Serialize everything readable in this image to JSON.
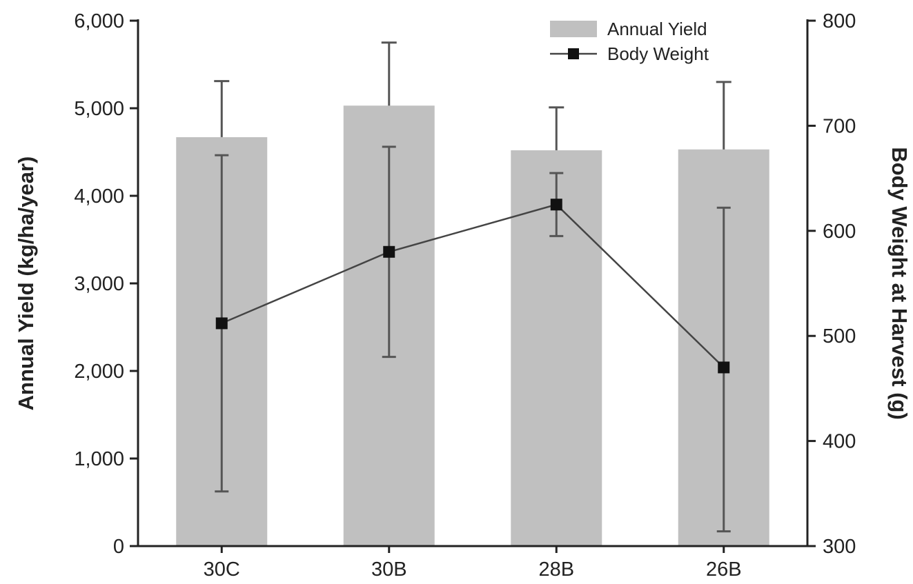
{
  "chart_data": {
    "type": "bar",
    "categories": [
      "30C",
      "30B",
      "28B",
      "26B"
    ],
    "series": [
      {
        "name": "Annual Yield",
        "kind": "bar",
        "axis": "left",
        "values": [
          4670,
          5030,
          4520,
          4530
        ],
        "error_plus": [
          640,
          720,
          490,
          770
        ],
        "color": "#c0c0c0"
      },
      {
        "name": "Body Weight",
        "kind": "line",
        "axis": "right",
        "values": [
          512,
          580,
          625,
          470
        ],
        "error_plus": [
          160,
          100,
          30,
          152
        ],
        "error_minus": [
          160,
          100,
          30,
          156
        ],
        "color": "#333333",
        "marker": "square"
      }
    ],
    "ylabel": "Annual Yield (kg/ha/year)",
    "y2label": "Body Weight at Harvest (g)",
    "xlabel": "",
    "ylim": [
      0,
      6000
    ],
    "y2lim": [
      300,
      800
    ],
    "yticks": [
      "0",
      "1,000",
      "2,000",
      "3,000",
      "4,000",
      "5,000",
      "6,000"
    ],
    "y2ticks": [
      "300",
      "400",
      "500",
      "600",
      "700",
      "800"
    ],
    "legend_position": "top-right",
    "grid": false
  }
}
